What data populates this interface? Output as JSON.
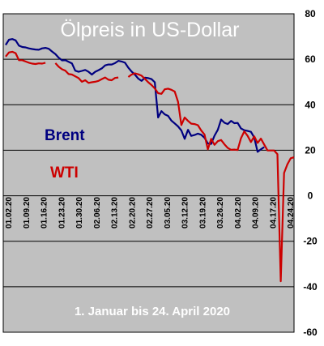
{
  "chart_data": {
    "type": "line",
    "title": "Ölpreis in US-Dollar",
    "subtitle": "1. Januar bis 24. April 2020",
    "xlabel": "",
    "ylabel": "",
    "ylim": [
      -60,
      80
    ],
    "y_ticks": [
      80,
      60,
      40,
      20,
      0,
      -20,
      -40,
      -60
    ],
    "grid": true,
    "colors": {
      "plot_background": "#c0c0c0",
      "grid": "#000000",
      "title_text": "#ffffff",
      "Brent": "#000080",
      "WTI": "#cc0000"
    },
    "x_tick_labels": [
      "01.02.20",
      "01.09.20",
      "01.16.20",
      "01.23.20",
      "01.30.20",
      "02.06.20",
      "02.13.20",
      "02.20.20",
      "02.27.20",
      "03.05.20",
      "03.12.20",
      "03.19.20",
      "03.26.20",
      "04.02.20",
      "04.09.20",
      "04.17.20",
      "04.24.20"
    ],
    "series": [
      {
        "name": "Brent",
        "points": [
          [
            0,
            66.3
          ],
          [
            1,
            68.6
          ],
          [
            2,
            68.9
          ],
          [
            3,
            68.3
          ],
          [
            4,
            66.0
          ],
          [
            5,
            65.4
          ],
          [
            6,
            65.2
          ],
          [
            7,
            64.8
          ],
          [
            8,
            64.5
          ],
          [
            9,
            64.3
          ],
          [
            10,
            64.2
          ],
          [
            11,
            64.8
          ],
          [
            12,
            65.0
          ],
          [
            13,
            64.6
          ],
          [
            14,
            63.4
          ],
          [
            15,
            62.3
          ],
          [
            16,
            60.7
          ],
          [
            17,
            59.5
          ],
          [
            18,
            59.6
          ],
          [
            19,
            58.9
          ],
          [
            20,
            58.2
          ],
          [
            21,
            55.0
          ],
          [
            22,
            54.5
          ],
          [
            23,
            54.9
          ],
          [
            24,
            55.3
          ],
          [
            25,
            54.5
          ],
          [
            26,
            53.3
          ],
          [
            27,
            54.5
          ],
          [
            28,
            55.2
          ],
          [
            29,
            56.0
          ],
          [
            30,
            57.3
          ],
          [
            31,
            57.7
          ],
          [
            32,
            57.7
          ],
          [
            33,
            58.3
          ],
          [
            34,
            59.3
          ],
          [
            35,
            59.0
          ],
          [
            36,
            58.5
          ],
          [
            37,
            56.3
          ],
          [
            38,
            54.6
          ],
          [
            39,
            53.2
          ],
          [
            40,
            51.5
          ],
          [
            41,
            50.5
          ],
          [
            42,
            51.9
          ],
          [
            43,
            51.7
          ],
          [
            44,
            51.3
          ],
          [
            45,
            49.9
          ],
          [
            46,
            34.4
          ],
          [
            47,
            37.2
          ],
          [
            48,
            35.8
          ],
          [
            49,
            35.1
          ],
          [
            50,
            33.0
          ],
          [
            51,
            31.8
          ],
          [
            52,
            30.5
          ],
          [
            53,
            28.7
          ],
          [
            54,
            25.0
          ],
          [
            55,
            29.0
          ],
          [
            56,
            26.3
          ],
          [
            57,
            26.7
          ],
          [
            58,
            27.3
          ],
          [
            59,
            26.8
          ],
          [
            60,
            25.5
          ],
          [
            61,
            23.0
          ],
          [
            62,
            22.8
          ],
          [
            63,
            26.4
          ],
          [
            64,
            29.0
          ],
          [
            65,
            33.5
          ],
          [
            66,
            32.1
          ],
          [
            67,
            31.5
          ],
          [
            68,
            32.9
          ],
          [
            69,
            31.9
          ],
          [
            70,
            32.0
          ],
          [
            71,
            29.6
          ],
          [
            72,
            28.8
          ],
          [
            73,
            28.5
          ],
          [
            74,
            28.1
          ],
          [
            75,
            25.6
          ],
          [
            76,
            19.3
          ],
          [
            77,
            20.4
          ],
          [
            78,
            21.4
          ]
        ],
        "gaps_after": []
      },
      {
        "name": "WTI",
        "points": [
          [
            0,
            61.2
          ],
          [
            1,
            63.0
          ],
          [
            2,
            63.3
          ],
          [
            3,
            62.7
          ],
          [
            4,
            59.6
          ],
          [
            5,
            59.6
          ],
          [
            6,
            59.0
          ],
          [
            7,
            58.5
          ],
          [
            8,
            58.1
          ],
          [
            9,
            57.9
          ],
          [
            10,
            58.2
          ],
          [
            11,
            58.1
          ],
          [
            12,
            58.5
          ],
          [
            15,
            58.3
          ],
          [
            16,
            56.7
          ],
          [
            17,
            55.6
          ],
          [
            18,
            55.0
          ],
          [
            19,
            53.5
          ],
          [
            20,
            53.3
          ],
          [
            21,
            52.5
          ],
          [
            22,
            51.7
          ],
          [
            23,
            50.1
          ],
          [
            24,
            50.8
          ],
          [
            25,
            49.6
          ],
          [
            26,
            49.9
          ],
          [
            27,
            50.1
          ],
          [
            28,
            50.5
          ],
          [
            29,
            51.3
          ],
          [
            30,
            52.0
          ],
          [
            31,
            51.0
          ],
          [
            32,
            50.8
          ],
          [
            33,
            51.8
          ],
          [
            34,
            52.0
          ],
          [
            37,
            52.2
          ],
          [
            38,
            53.3
          ],
          [
            39,
            53.8
          ],
          [
            40,
            53.4
          ],
          [
            41,
            52.8
          ],
          [
            42,
            51.4
          ],
          [
            43,
            49.9
          ],
          [
            44,
            48.7
          ],
          [
            45,
            47.2
          ],
          [
            46,
            45.1
          ],
          [
            47,
            44.8
          ],
          [
            48,
            46.8
          ],
          [
            49,
            47.1
          ],
          [
            50,
            46.6
          ],
          [
            51,
            45.8
          ],
          [
            52,
            41.3
          ],
          [
            53,
            31.1
          ],
          [
            54,
            34.4
          ],
          [
            55,
            32.9
          ],
          [
            56,
            31.7
          ],
          [
            57,
            31.5
          ],
          [
            58,
            31.0
          ],
          [
            59,
            28.7
          ],
          [
            60,
            26.9
          ],
          [
            61,
            20.4
          ],
          [
            62,
            25.0
          ],
          [
            63,
            22.4
          ],
          [
            64,
            24.0
          ],
          [
            65,
            24.5
          ],
          [
            66,
            22.6
          ],
          [
            67,
            21.0
          ],
          [
            68,
            20.2
          ],
          [
            69,
            20.3
          ],
          [
            70,
            20.1
          ],
          [
            71,
            25.3
          ],
          [
            72,
            28.3
          ],
          [
            73,
            26.3
          ],
          [
            74,
            23.6
          ],
          [
            75,
            26.1
          ],
          [
            76,
            23.2
          ],
          [
            77,
            25.1
          ],
          [
            78,
            22.5
          ],
          [
            79,
            19.9
          ],
          [
            80,
            19.9
          ],
          [
            81,
            19.9
          ],
          [
            82,
            18.3
          ],
          [
            83,
            -37.6
          ],
          [
            84,
            10.0
          ],
          [
            85,
            13.8
          ],
          [
            86,
            16.5
          ],
          [
            87,
            16.9
          ]
        ],
        "gaps_after": [
          12,
          34
        ]
      }
    ]
  }
}
